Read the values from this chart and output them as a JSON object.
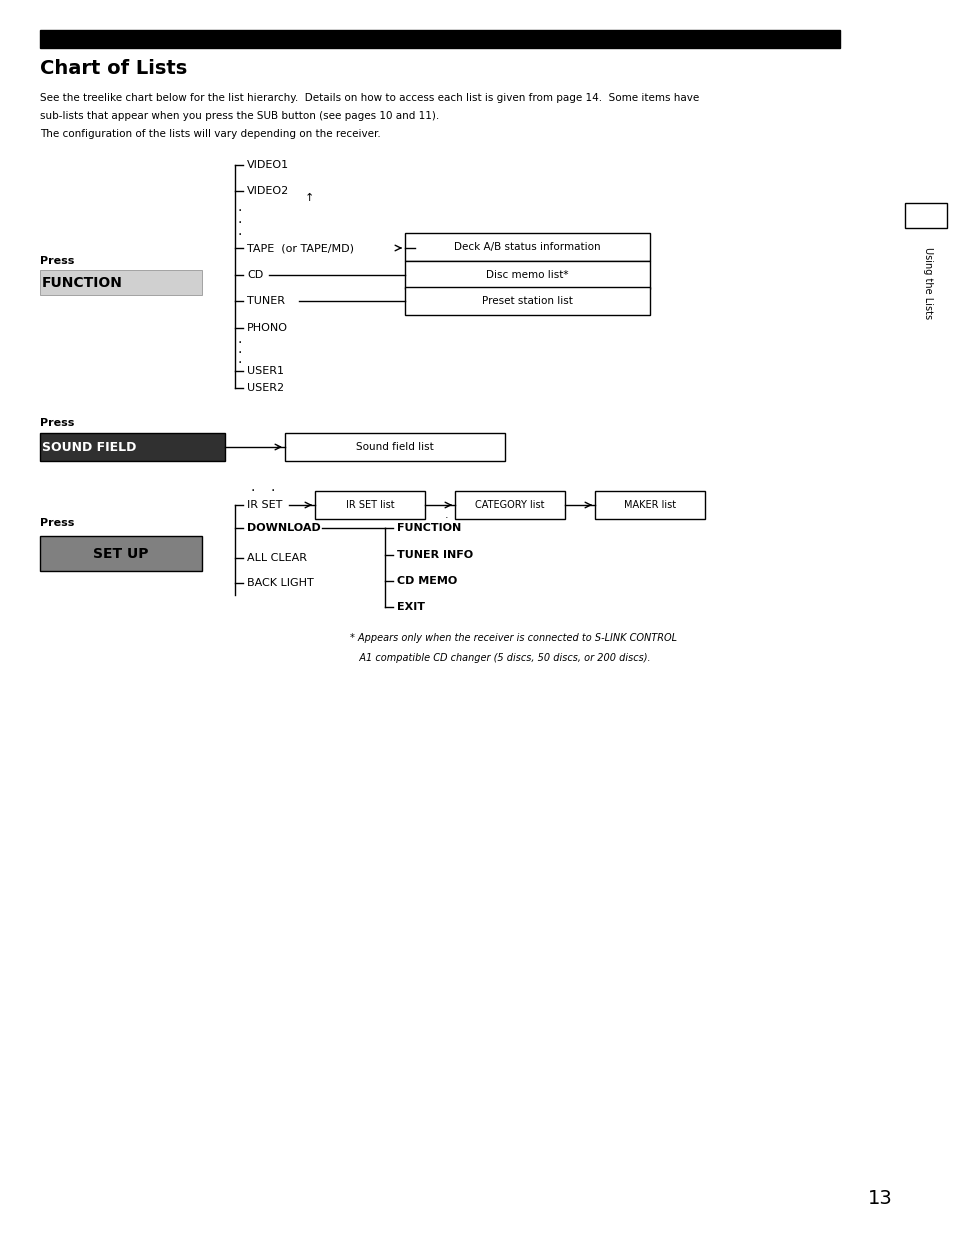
{
  "title": "Chart of Lists",
  "bg_color": "#ffffff",
  "title_bar_color": "#000000",
  "intro_text": "See the treelike chart below for the list hierarchy.  Details on how to access each list is given from page 14.  Some items have\nsub-lists that appear when you press the SUB button (see pages 10 and 11).\nThe configuration of the lists will vary depending on the receiver.",
  "sidebar_text": "Using the Lists",
  "page_number": "13",
  "section1": {
    "press_label": "Press",
    "button_label": "FUNCTION",
    "items": [
      "VIDEO1",
      "VIDEO2",
      "TAPE  (or TAPE/MD)",
      "CD",
      "TUNER",
      "PHONO",
      "USER1",
      "USER2"
    ],
    "dots_after_video2": true,
    "dots_after_phono": true,
    "tape_box": "Deck A/B status information",
    "cd_box": "Disc memo list*",
    "tuner_box": "Preset station list"
  },
  "section2": {
    "press_label": "Press",
    "button_label": "SOUND FIELD",
    "box": "Sound field list"
  },
  "section3": {
    "press_label": "Press",
    "button_label": "SET UP",
    "items": [
      "IR SET",
      "DOWNLOAD",
      "ALL CLEAR",
      "BACK LIGHT"
    ],
    "ir_set_boxes": [
      "IR SET list",
      "CATEGORY list",
      "MAKER list"
    ],
    "download_items": [
      "FUNCTION",
      "TUNER INFO",
      "CD MEMO",
      "EXIT"
    ]
  },
  "footnote": "* Appears only when the receiver is connected to S-LINK CONTROL\n   A1 compatible CD changer (5 discs, 50 discs, or 200 discs)."
}
